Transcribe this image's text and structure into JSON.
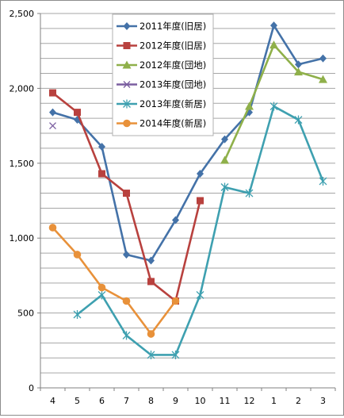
{
  "chart_data": {
    "type": "line",
    "categories": [
      "4",
      "5",
      "6",
      "7",
      "8",
      "9",
      "10",
      "11",
      "12",
      "1",
      "2",
      "3"
    ],
    "ylim": [
      0,
      2500
    ],
    "yticks": [
      "0",
      "500",
      "1,000",
      "1,500",
      "2,000",
      "2,500"
    ],
    "ytick_values": [
      0,
      500,
      1000,
      1500,
      2000,
      2500
    ],
    "grid": "horizontal",
    "legend_placement": "top-center",
    "series": [
      {
        "name": "2011年度(旧居)",
        "color": "#4472a8",
        "marker": "diamond",
        "values": [
          1840,
          1790,
          1610,
          890,
          850,
          1120,
          1430,
          1660,
          1840,
          2420,
          2160,
          2200
        ]
      },
      {
        "name": "2012年度(旧居)",
        "color": "#b8413e",
        "marker": "square",
        "values": [
          1970,
          1840,
          1430,
          1300,
          710,
          580,
          1250,
          null,
          null,
          null,
          null,
          null
        ]
      },
      {
        "name": "2012年度(団地)",
        "color": "#8fb04a",
        "marker": "triangle",
        "values": [
          null,
          null,
          null,
          null,
          null,
          null,
          null,
          1520,
          1880,
          2290,
          2110,
          2060
        ]
      },
      {
        "name": "2013年度(団地)",
        "color": "#7b5fa0",
        "marker": "x",
        "values": [
          1750,
          null,
          null,
          null,
          null,
          null,
          null,
          null,
          null,
          null,
          null,
          null
        ]
      },
      {
        "name": "2013年度(新居)",
        "color": "#3ea0b0",
        "marker": "star",
        "values": [
          null,
          490,
          620,
          350,
          220,
          220,
          620,
          1340,
          1300,
          1880,
          1790,
          1380
        ]
      },
      {
        "name": "2014年度(新居)",
        "color": "#e8913a",
        "marker": "circle",
        "values": [
          1070,
          890,
          670,
          580,
          360,
          580,
          null,
          null,
          null,
          null,
          null,
          null
        ]
      }
    ]
  }
}
